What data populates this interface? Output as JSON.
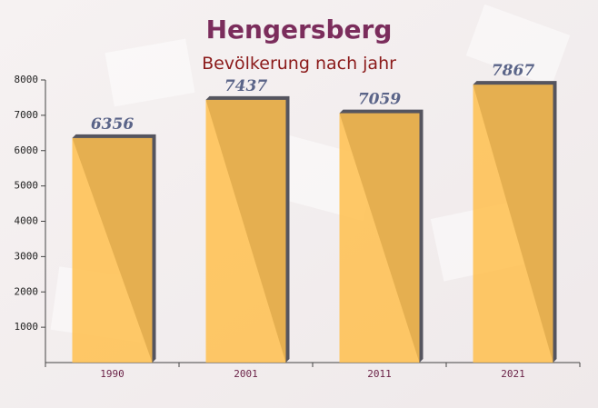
{
  "chart_data": {
    "type": "bar",
    "title": "Hengersberg",
    "subtitle": "Bevölkerung nach jahr",
    "categories": [
      "1990",
      "2001",
      "2011",
      "2021"
    ],
    "values": [
      6356,
      7437,
      7059,
      7867
    ],
    "color": "#ffc04d",
    "ylim": [
      0,
      8000
    ],
    "yticks": [
      1000,
      2000,
      3000,
      4000,
      5000,
      6000,
      7000,
      8000
    ]
  }
}
